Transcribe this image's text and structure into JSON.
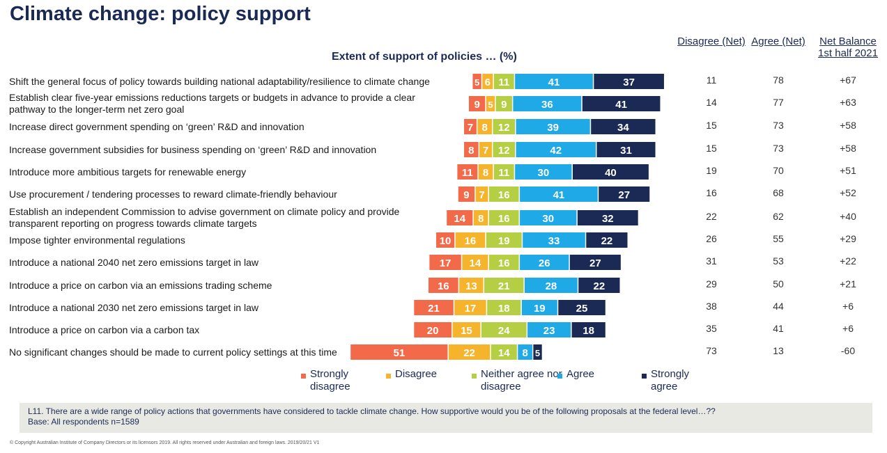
{
  "title": "Climate change: policy support",
  "columns": {
    "disagree": "Disagree (Net)",
    "agree": "Agree (Net)",
    "net": "Net Balance 1st half 2021"
  },
  "legend": [
    {
      "label": "Strongly disagree",
      "color": "#f26a4a"
    },
    {
      "label": "Disagree",
      "color": "#f6b42c"
    },
    {
      "label": "Neither agree nor disagree",
      "color": "#b5cf45"
    },
    {
      "label": "Agree",
      "color": "#1fa9e6"
    },
    {
      "label": "Strongly agree",
      "color": "#1b2a55"
    }
  ],
  "footnote": {
    "question": "L11. There are a wide range of policy actions that governments have considered to tackle climate change.  How supportive would you be of the following proposals at the federal level…??",
    "base": "Base: All respondents n=1589"
  },
  "copyright": "© Copyright Australian Institute of Company Directors or its licensors 2019.  All rights reserved under Australian and foreign laws. 2019/20/21 V1",
  "chart_data": {
    "type": "bar",
    "title": "Extent of support of policies … (%)",
    "categories": [
      "Shift the general focus of policy towards building national adaptability/resilience to climate change",
      "Establish clear five-year emissions reductions targets or budgets in advance to provide a clear pathway to the longer-term net zero goal",
      "Increase direct government spending on ‘green’ R&D and innovation",
      "Increase government subsidies for business spending on ‘green’ R&D and innovation",
      "Introduce more ambitious targets for renewable energy",
      "Use procurement / tendering processes to reward climate-friendly behaviour",
      "Establish an independent Commission to advise government on climate policy and provide transparent reporting on progress towards climate targets",
      "Impose tighter environmental regulations",
      "Introduce a national 2040 net zero emissions target in law",
      "Introduce a price on carbon via an emissions trading scheme",
      "Introduce a national 2030 net zero emissions target in law",
      "Introduce a price on carbon via a carbon tax",
      "No significant changes should be made to current policy settings at this time"
    ],
    "series": [
      {
        "name": "Strongly disagree",
        "values": [
          5,
          9,
          7,
          8,
          11,
          9,
          14,
          10,
          17,
          16,
          21,
          20,
          51
        ]
      },
      {
        "name": "Disagree",
        "values": [
          6,
          5,
          8,
          7,
          8,
          7,
          8,
          16,
          14,
          13,
          17,
          15,
          22
        ]
      },
      {
        "name": "Neither agree nor disagree",
        "values": [
          11,
          9,
          12,
          12,
          11,
          16,
          16,
          19,
          16,
          21,
          18,
          24,
          14
        ]
      },
      {
        "name": "Agree",
        "values": [
          41,
          36,
          39,
          42,
          30,
          41,
          30,
          33,
          26,
          28,
          19,
          23,
          8
        ]
      },
      {
        "name": "Strongly agree",
        "values": [
          37,
          41,
          34,
          31,
          40,
          27,
          32,
          22,
          27,
          22,
          25,
          18,
          5
        ]
      }
    ],
    "disagree_net": [
      "11",
      "14",
      "15",
      "15",
      "19",
      "16",
      "22",
      "26",
      "31",
      "29",
      "38",
      "35",
      "73"
    ],
    "agree_net": [
      "78",
      "77",
      "73",
      "73",
      "70",
      "68",
      "62",
      "55",
      "53",
      "50",
      "44",
      "41",
      "13"
    ],
    "net_balance": [
      "+67",
      "+63",
      "+58",
      "+58",
      "+51",
      "+52",
      "+40",
      "+29",
      "+22",
      "+21",
      "+6",
      "+6",
      "-60"
    ],
    "label_colors": [
      "#ffffff",
      "#ffffff",
      "#ffffff",
      "#ffffff",
      "#ffffff"
    ]
  }
}
